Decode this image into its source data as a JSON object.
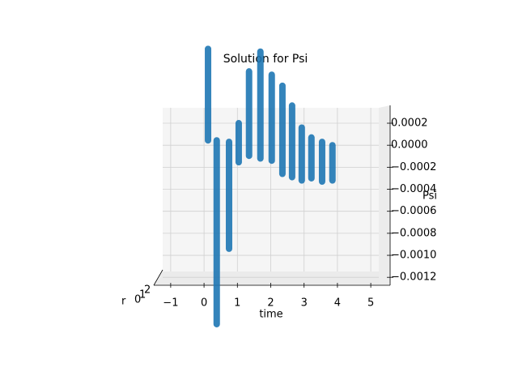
{
  "chart_data": {
    "type": "scatter3d",
    "title": "Solution for Psi",
    "xlabel": "time",
    "ylabel": "r",
    "zlabel": "Psi",
    "color": "#1f77b4",
    "x": [
      0.12,
      0.38,
      0.75,
      1.04,
      1.35,
      1.69,
      2.03,
      2.35,
      2.64,
      2.93,
      3.22,
      3.54,
      3.85
    ],
    "z_max": [
      0.000875,
      4.4e-05,
      3e-05,
      0.0002,
      0.00067,
      0.00085,
      0.00064,
      0.00054,
      0.00036,
      0.00016,
      7e-05,
      3e-05,
      0.0
    ],
    "z_min": [
      4.4e-05,
      -0.001625,
      -0.00094,
      -0.000154,
      -9.6e-05,
      -0.00012,
      -0.00014,
      -0.00026,
      -0.00029,
      -0.00032,
      -0.0003,
      -0.00033,
      -0.00032
    ],
    "xlim": [
      -1.24,
      5.24
    ],
    "xticks": [
      {
        "value": -1,
        "label": "−1"
      },
      0,
      1,
      2,
      3,
      4,
      5
    ],
    "zlim": [
      -0.00125,
      0.00034
    ],
    "zticks": [
      0.0002,
      {
        "value": 0,
        "label": "0.0000"
      },
      {
        "value": -0.0002,
        "label": "−0.0002"
      },
      {
        "value": -0.0004,
        "label": "−0.0004"
      },
      {
        "value": -0.0006,
        "label": "−0.0006"
      },
      {
        "value": -0.0008,
        "label": "−0.0008"
      },
      {
        "value": -0.001,
        "label": "−0.0010"
      },
      {
        "value": -0.0012,
        "label": "−0.0012"
      }
    ],
    "yticks": [
      0,
      1,
      2
    ],
    "grid": true
  }
}
